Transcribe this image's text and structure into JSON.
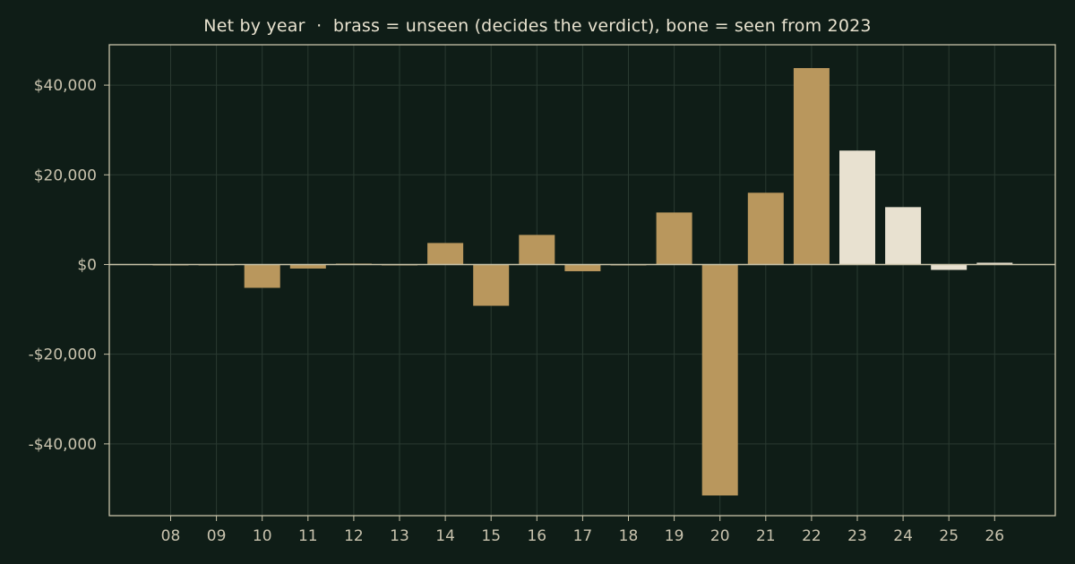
{
  "chart_data": {
    "type": "bar",
    "title": "Net by year  ·  brass = unseen (decides the verdict), bone = seen from 2023",
    "xlabel": "",
    "ylabel": "",
    "categories": [
      "08",
      "09",
      "10",
      "11",
      "12",
      "13",
      "14",
      "15",
      "16",
      "17",
      "18",
      "19",
      "20",
      "21",
      "22",
      "23",
      "24",
      "25",
      "26"
    ],
    "values": [
      0,
      0,
      -5200,
      -900,
      200,
      0,
      4800,
      -9200,
      6600,
      -1500,
      0,
      11600,
      -51500,
      16000,
      43800,
      25400,
      12800,
      -1200,
      400
    ],
    "groups": [
      "unseen",
      "unseen",
      "unseen",
      "unseen",
      "unseen",
      "unseen",
      "unseen",
      "unseen",
      "unseen",
      "unseen",
      "unseen",
      "unseen",
      "unseen",
      "unseen",
      "unseen",
      "seen",
      "seen",
      "seen",
      "seen"
    ],
    "ylim": [
      -56000,
      49000
    ],
    "yticks": [
      40000,
      20000,
      0,
      -20000,
      -40000
    ],
    "ytick_labels": [
      "$40,000",
      "$20,000",
      "$0",
      "-$20,000",
      "-$40,000"
    ],
    "grid": true,
    "colors": {
      "background": "#0f1d17",
      "unseen": "#b9975d",
      "seen": "#e8e1d0",
      "axis": "#c8c2a8",
      "grid": "#2a3a31"
    }
  }
}
